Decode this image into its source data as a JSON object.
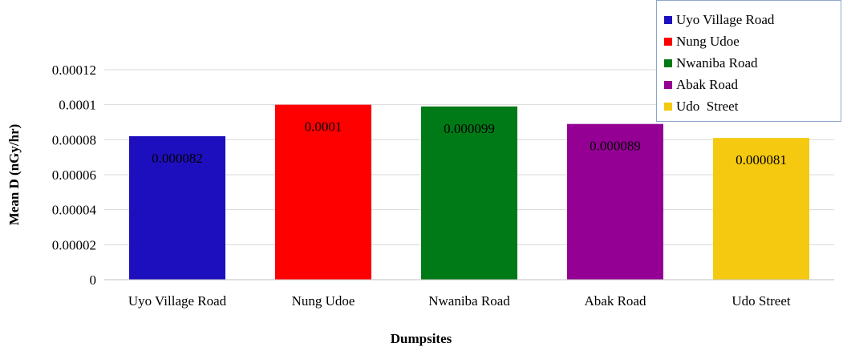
{
  "chart_data": {
    "type": "bar",
    "categories": [
      "Uyo Village Road",
      "Nung Udoe",
      "Nwaniba Road",
      "Abak Road",
      "Udo  Street"
    ],
    "values": [
      8.2e-05,
      0.0001,
      9.9e-05,
      8.9e-05,
      8.1e-05
    ],
    "data_labels": [
      "0.000082",
      "0.0001",
      "0.000099",
      "0.000089",
      "0.000081"
    ],
    "colors": [
      "#1e0fbe",
      "#ff0000",
      "#007a16",
      "#930093",
      "#f5c90f"
    ],
    "xlabel": "Dumpsites",
    "ylabel": "Mean D (nGy/hr)",
    "ylim": [
      0,
      0.00012
    ],
    "yticks": [
      0,
      2e-05,
      4e-05,
      6e-05,
      8e-05,
      0.0001,
      0.00012
    ],
    "ytick_labels": [
      "0",
      "0.00002",
      "0.00004",
      "0.00006",
      "0.00008",
      "0.0001",
      "0.00012"
    ],
    "grid": true,
    "legend_position": "top-right"
  }
}
